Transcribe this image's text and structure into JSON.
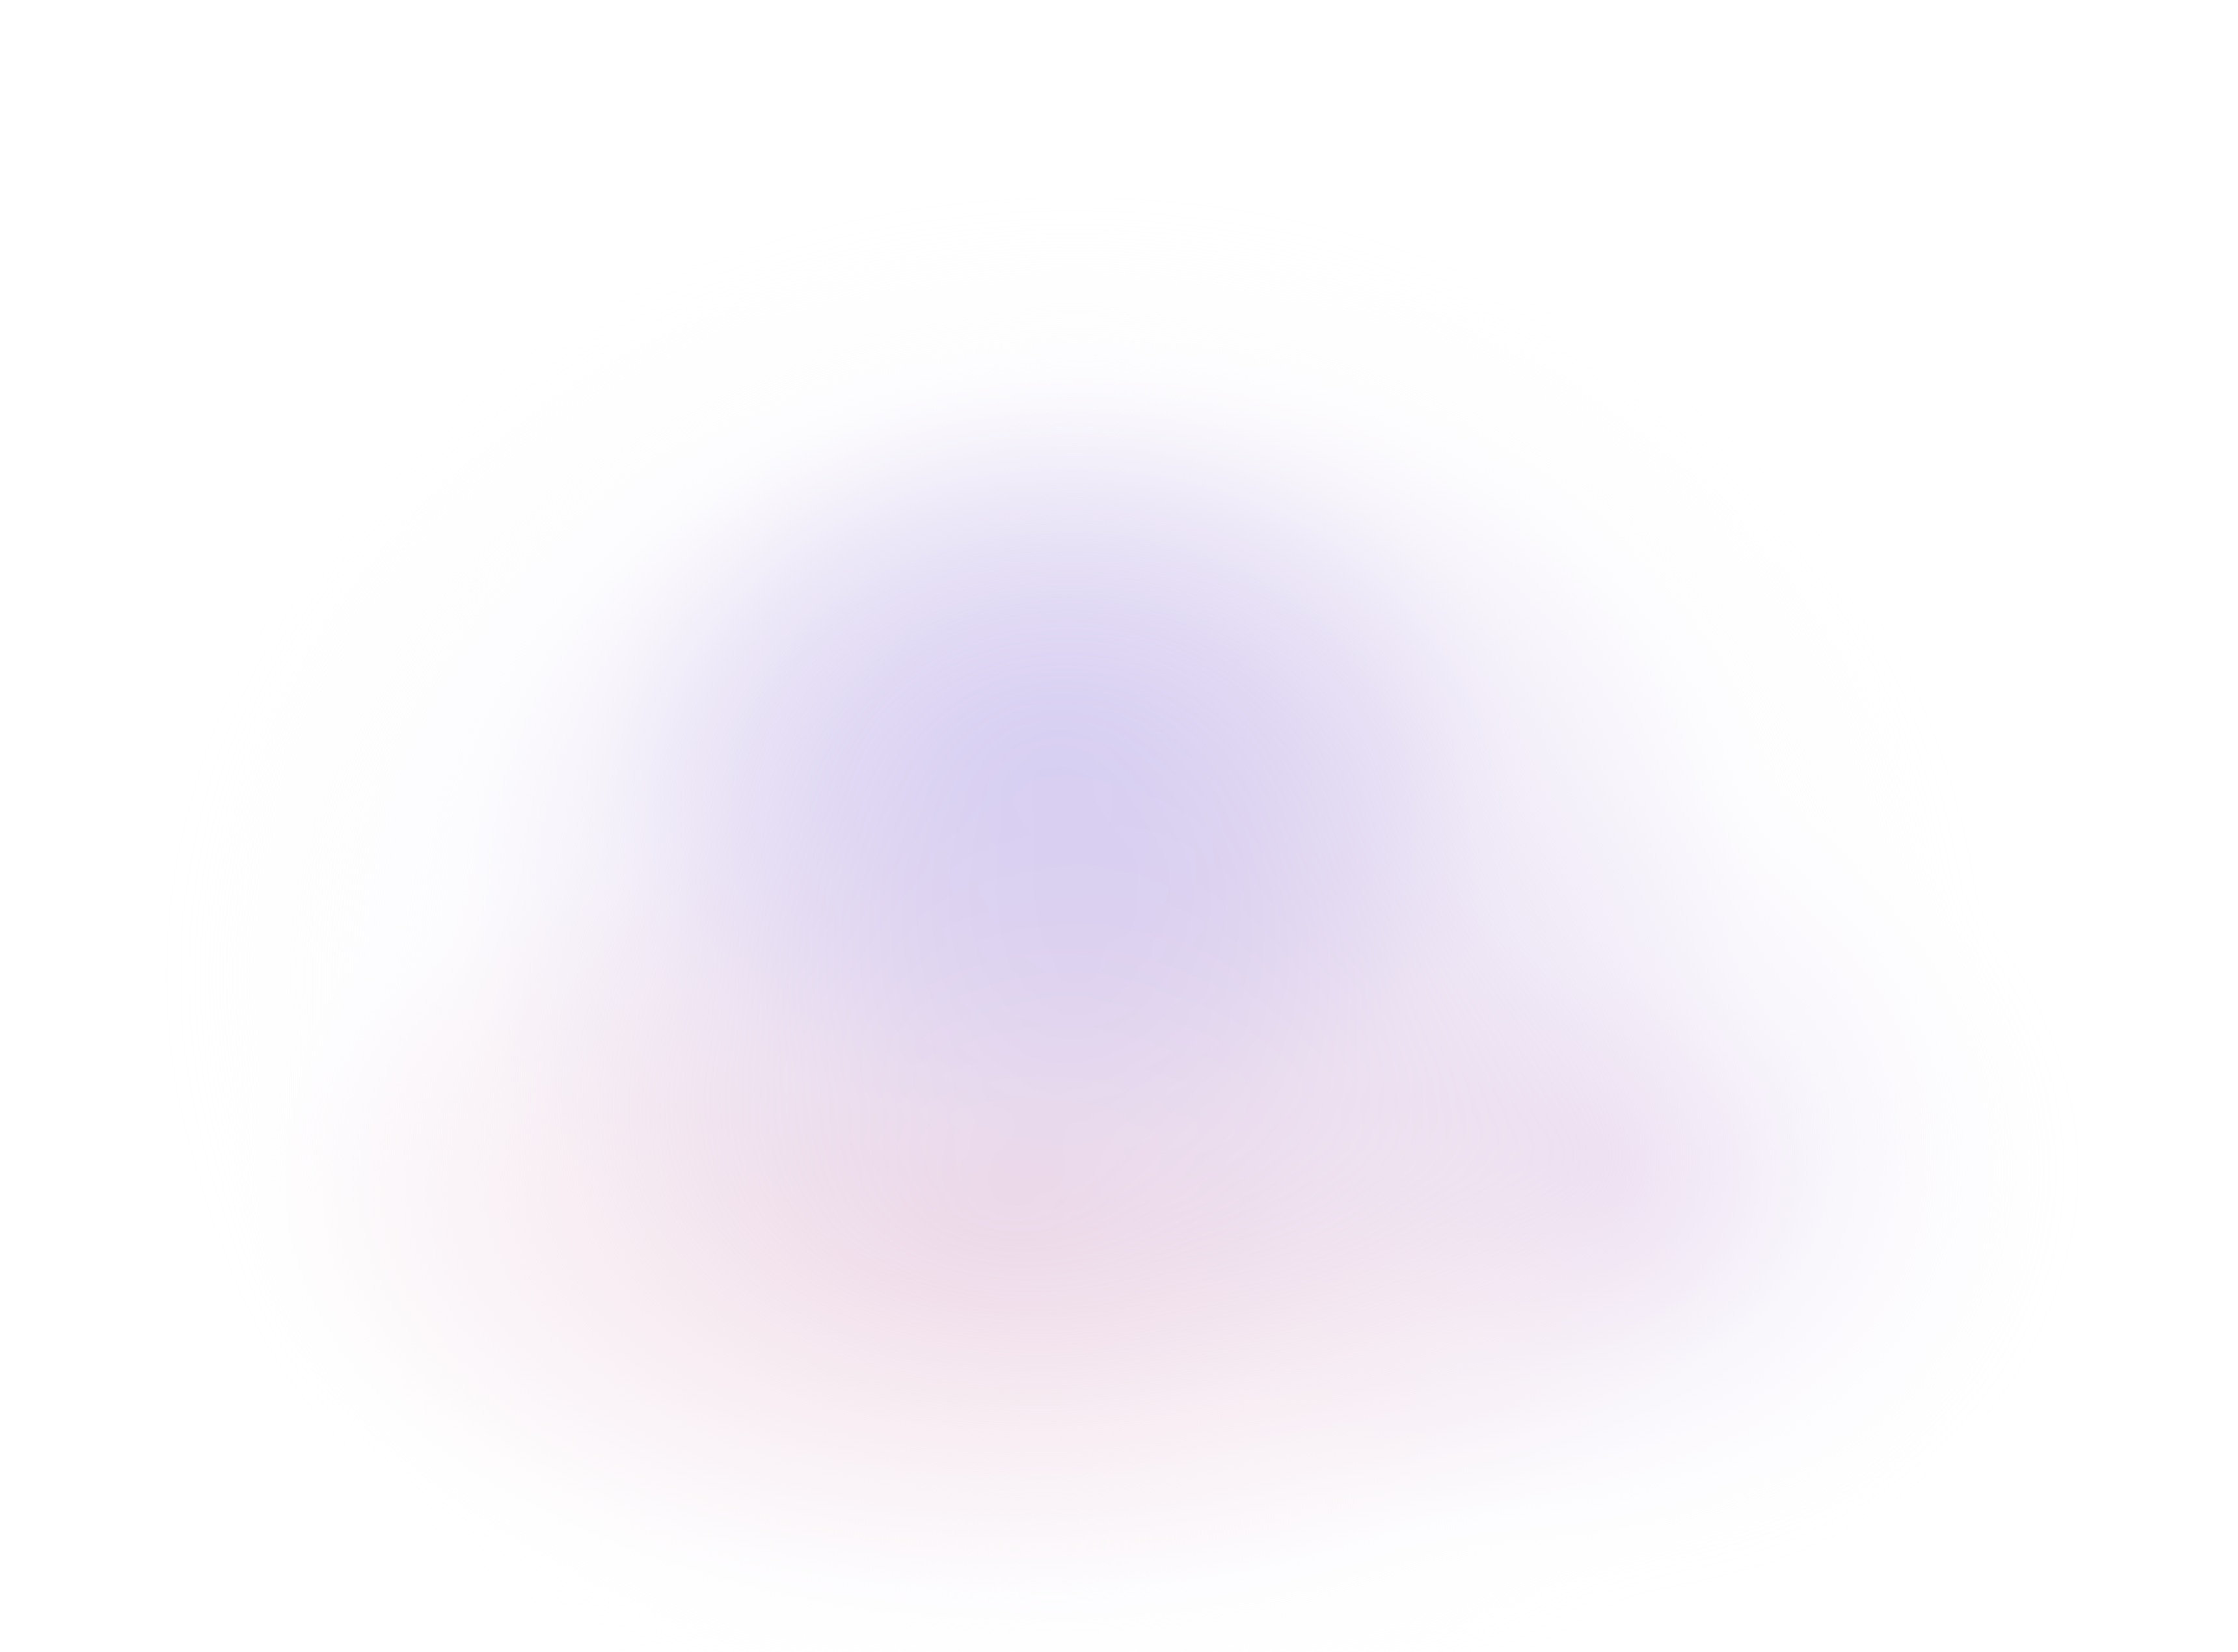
{
  "background": {
    "base_color": "#ffffff",
    "glow_colors": [
      "#d6cef2",
      "#deceea",
      "#f0d6e2"
    ]
  },
  "texts": []
}
